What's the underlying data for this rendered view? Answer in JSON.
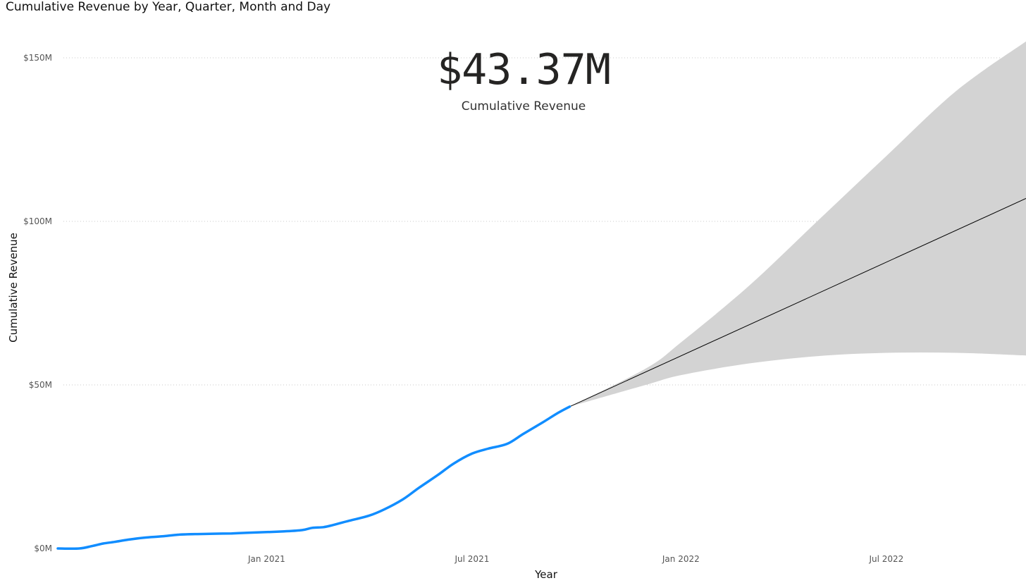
{
  "chart_data": {
    "type": "line",
    "title": "Cumulative Revenue by Year, Quarter, Month and Day",
    "xlabel": "Year",
    "ylabel": "Cumulative Revenue",
    "ylim": [
      0,
      150
    ],
    "y_unit": "$M",
    "yticks": [
      {
        "value": 0,
        "label": "$0M"
      },
      {
        "value": 50,
        "label": "$50M"
      },
      {
        "value": 100,
        "label": "$100M"
      },
      {
        "value": 150,
        "label": "$150M"
      }
    ],
    "xlim": [
      "2020-07-01",
      "2022-11-01"
    ],
    "xticks": [
      {
        "value": "2021-01-01",
        "label": "Jan 2021"
      },
      {
        "value": "2021-07-01",
        "label": "Jul 2021"
      },
      {
        "value": "2022-01-01",
        "label": "Jan 2022"
      },
      {
        "value": "2022-07-01",
        "label": "Jul 2022"
      }
    ],
    "grid": true,
    "legend": "none",
    "series": [
      {
        "kind": "actual",
        "color": "#118DFF",
        "points": [
          {
            "x": "2020-07-01",
            "y": 0.0
          },
          {
            "x": "2020-07-20",
            "y": 0.0
          },
          {
            "x": "2020-08-01",
            "y": 0.8
          },
          {
            "x": "2020-08-10",
            "y": 1.5
          },
          {
            "x": "2020-08-20",
            "y": 2.0
          },
          {
            "x": "2020-09-01",
            "y": 2.7
          },
          {
            "x": "2020-09-15",
            "y": 3.3
          },
          {
            "x": "2020-10-01",
            "y": 3.7
          },
          {
            "x": "2020-10-15",
            "y": 4.2
          },
          {
            "x": "2020-11-01",
            "y": 4.4
          },
          {
            "x": "2020-11-15",
            "y": 4.5
          },
          {
            "x": "2020-12-01",
            "y": 4.6
          },
          {
            "x": "2020-12-15",
            "y": 4.8
          },
          {
            "x": "2021-01-01",
            "y": 5.0
          },
          {
            "x": "2021-01-15",
            "y": 5.2
          },
          {
            "x": "2021-02-01",
            "y": 5.6
          },
          {
            "x": "2021-02-10",
            "y": 6.3
          },
          {
            "x": "2021-02-20",
            "y": 6.5
          },
          {
            "x": "2021-03-01",
            "y": 7.2
          },
          {
            "x": "2021-03-15",
            "y": 8.5
          },
          {
            "x": "2021-04-01",
            "y": 10.0
          },
          {
            "x": "2021-04-15",
            "y": 12.0
          },
          {
            "x": "2021-05-01",
            "y": 15.0
          },
          {
            "x": "2021-05-15",
            "y": 18.5
          },
          {
            "x": "2021-06-01",
            "y": 22.5
          },
          {
            "x": "2021-06-15",
            "y": 26.0
          },
          {
            "x": "2021-07-01",
            "y": 29.0
          },
          {
            "x": "2021-07-15",
            "y": 30.5
          },
          {
            "x": "2021-08-01",
            "y": 32.0
          },
          {
            "x": "2021-08-15",
            "y": 35.0
          },
          {
            "x": "2021-09-01",
            "y": 38.5
          },
          {
            "x": "2021-09-15",
            "y": 41.5
          },
          {
            "x": "2021-09-25",
            "y": 43.37
          }
        ]
      },
      {
        "kind": "forecast",
        "color": "#000000",
        "points": [
          {
            "x": "2021-09-25",
            "y": 43.37
          },
          {
            "x": "2022-11-01",
            "y": 107.0
          }
        ]
      },
      {
        "kind": "forecast-upper-bound",
        "color": "#D3D3D3",
        "points": [
          {
            "x": "2021-09-25",
            "y": 43.37
          },
          {
            "x": "2021-12-01",
            "y": 55.0
          },
          {
            "x": "2022-01-01",
            "y": 63.0
          },
          {
            "x": "2022-03-01",
            "y": 80.0
          },
          {
            "x": "2022-05-01",
            "y": 100.0
          },
          {
            "x": "2022-07-01",
            "y": 120.0
          },
          {
            "x": "2022-09-01",
            "y": 140.0
          },
          {
            "x": "2022-11-01",
            "y": 155.0
          }
        ]
      },
      {
        "kind": "forecast-lower-bound",
        "color": "#D3D3D3",
        "points": [
          {
            "x": "2021-09-25",
            "y": 43.37
          },
          {
            "x": "2021-12-01",
            "y": 50.0
          },
          {
            "x": "2022-01-01",
            "y": 53.0
          },
          {
            "x": "2022-03-01",
            "y": 56.5
          },
          {
            "x": "2022-05-01",
            "y": 58.8
          },
          {
            "x": "2022-07-01",
            "y": 59.8
          },
          {
            "x": "2022-09-01",
            "y": 59.8
          },
          {
            "x": "2022-11-01",
            "y": 59.0
          }
        ]
      }
    ]
  },
  "kpi": {
    "value": "$43.37M",
    "label": "Cumulative Revenue"
  }
}
